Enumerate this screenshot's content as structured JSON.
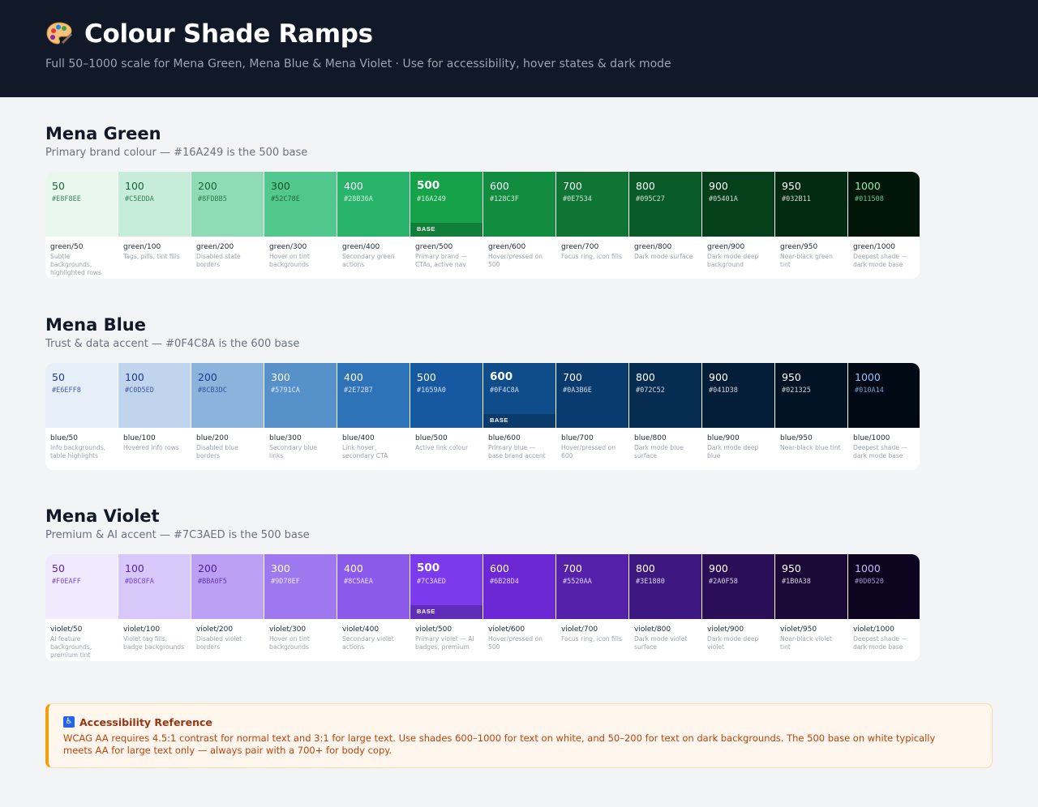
{
  "header": {
    "title": "Colour Shade Ramps",
    "subtitle": "Full 50–1000 scale for Mena Green, Mena Blue & Mena Violet  ·  Use for accessibility, hover states & dark mode",
    "icon": "palette-icon"
  },
  "ramps": [
    {
      "title": "Mena Green",
      "description": "Primary brand colour — #16A249 is the 500 base",
      "base_label": "BASE",
      "shades": [
        {
          "shade": "50",
          "hex": "#E8F8EE",
          "text": "#166534",
          "base": false,
          "token": "green/50",
          "usage": "Subtle backgrounds, highlighted rows"
        },
        {
          "shade": "100",
          "hex": "#C5EDDA",
          "text": "#166534",
          "base": false,
          "token": "green/100",
          "usage": "Tags, pills, tint fills"
        },
        {
          "shade": "200",
          "hex": "#8FDBB5",
          "text": "#166534",
          "base": false,
          "token": "green/200",
          "usage": "Disabled state borders"
        },
        {
          "shade": "300",
          "hex": "#52C78E",
          "text": "#14532D",
          "base": false,
          "token": "green/300",
          "usage": "Hover on tint backgrounds"
        },
        {
          "shade": "400",
          "hex": "#28B36A",
          "text": "#FFFFFF",
          "base": false,
          "token": "green/400",
          "usage": "Secondary green actions"
        },
        {
          "shade": "500",
          "hex": "#16A249",
          "text": "#FFFFFF",
          "base": true,
          "token": "green/500",
          "usage": "Primary brand — CTAs, active nav"
        },
        {
          "shade": "600",
          "hex": "#128C3F",
          "text": "#FFFFFF",
          "base": false,
          "token": "green/600",
          "usage": "Hover/pressed on 500"
        },
        {
          "shade": "700",
          "hex": "#0E7534",
          "text": "#FFFFFF",
          "base": false,
          "token": "green/700",
          "usage": "Focus ring, icon fills"
        },
        {
          "shade": "800",
          "hex": "#095C27",
          "text": "#FFFFFF",
          "base": false,
          "token": "green/800",
          "usage": "Dark mode surface"
        },
        {
          "shade": "900",
          "hex": "#05401A",
          "text": "#FFFFFF",
          "base": false,
          "token": "green/900",
          "usage": "Dark mode deep background"
        },
        {
          "shade": "950",
          "hex": "#032B11",
          "text": "#FFFFFF",
          "base": false,
          "token": "green/950",
          "usage": "Near-black green tint"
        },
        {
          "shade": "1000",
          "hex": "#011508",
          "text": "#86EFAC",
          "base": false,
          "token": "green/1000",
          "usage": "Deepest shade — dark mode base"
        }
      ]
    },
    {
      "title": "Mena Blue",
      "description": "Trust & data accent — #0F4C8A is the 600 base",
      "base_label": "BASE",
      "shades": [
        {
          "shade": "50",
          "hex": "#E6EFF8",
          "text": "#1E3A8A",
          "base": false,
          "token": "blue/50",
          "usage": "Info backgrounds, table highlights"
        },
        {
          "shade": "100",
          "hex": "#C0D5ED",
          "text": "#1E3A8A",
          "base": false,
          "token": "blue/100",
          "usage": "Hovered info rows"
        },
        {
          "shade": "200",
          "hex": "#8CB3DC",
          "text": "#1E3A8A",
          "base": false,
          "token": "blue/200",
          "usage": "Disabled blue borders"
        },
        {
          "shade": "300",
          "hex": "#5791CA",
          "text": "#FFFFFF",
          "base": false,
          "token": "blue/300",
          "usage": "Secondary blue links"
        },
        {
          "shade": "400",
          "hex": "#2E72B7",
          "text": "#FFFFFF",
          "base": false,
          "token": "blue/400",
          "usage": "Link hover, secondary CTA"
        },
        {
          "shade": "500",
          "hex": "#1659A0",
          "text": "#FFFFFF",
          "base": false,
          "token": "blue/500",
          "usage": "Active link colour"
        },
        {
          "shade": "600",
          "hex": "#0F4C8A",
          "text": "#FFFFFF",
          "base": true,
          "token": "blue/600",
          "usage": "Primary blue — base brand accent"
        },
        {
          "shade": "700",
          "hex": "#0A3B6E",
          "text": "#FFFFFF",
          "base": false,
          "token": "blue/700",
          "usage": "Hover/pressed on 600"
        },
        {
          "shade": "800",
          "hex": "#072C52",
          "text": "#FFFFFF",
          "base": false,
          "token": "blue/800",
          "usage": "Dark mode blue surface"
        },
        {
          "shade": "900",
          "hex": "#041D38",
          "text": "#FFFFFF",
          "base": false,
          "token": "blue/900",
          "usage": "Dark mode deep blue"
        },
        {
          "shade": "950",
          "hex": "#021325",
          "text": "#FFFFFF",
          "base": false,
          "token": "blue/950",
          "usage": "Near-black blue tint"
        },
        {
          "shade": "1000",
          "hex": "#010A14",
          "text": "#93C5FD",
          "base": false,
          "token": "blue/1000",
          "usage": "Deepest shade — dark mode base"
        }
      ]
    },
    {
      "title": "Mena Violet",
      "description": "Premium & AI accent — #7C3AED is the 500 base",
      "base_label": "BASE",
      "shades": [
        {
          "shade": "50",
          "hex": "#F0EAFF",
          "text": "#5B21B6",
          "base": false,
          "token": "violet/50",
          "usage": "AI feature backgrounds, premium tint"
        },
        {
          "shade": "100",
          "hex": "#D8C8FA",
          "text": "#5B21B6",
          "base": false,
          "token": "violet/100",
          "usage": "Violet tag fills, badge backgrounds"
        },
        {
          "shade": "200",
          "hex": "#BBA0F5",
          "text": "#4C1D95",
          "base": false,
          "token": "violet/200",
          "usage": "Disabled violet borders"
        },
        {
          "shade": "300",
          "hex": "#9D78EF",
          "text": "#FFFFFF",
          "base": false,
          "token": "violet/300",
          "usage": "Hover on tint backgrounds"
        },
        {
          "shade": "400",
          "hex": "#8C5AEA",
          "text": "#FFFFFF",
          "base": false,
          "token": "violet/400",
          "usage": "Secondary violet actions"
        },
        {
          "shade": "500",
          "hex": "#7C3AED",
          "text": "#FFFFFF",
          "base": true,
          "token": "violet/500",
          "usage": "Primary violet — AI badges, premium"
        },
        {
          "shade": "600",
          "hex": "#6B28D4",
          "text": "#FFFFFF",
          "base": false,
          "token": "violet/600",
          "usage": "Hover/pressed on 500"
        },
        {
          "shade": "700",
          "hex": "#5520AA",
          "text": "#FFFFFF",
          "base": false,
          "token": "violet/700",
          "usage": "Focus ring, icon fills"
        },
        {
          "shade": "800",
          "hex": "#3E1880",
          "text": "#FFFFFF",
          "base": false,
          "token": "violet/800",
          "usage": "Dark mode violet surface"
        },
        {
          "shade": "900",
          "hex": "#2A0F58",
          "text": "#FFFFFF",
          "base": false,
          "token": "violet/900",
          "usage": "Dark mode deep violet"
        },
        {
          "shade": "950",
          "hex": "#1B0A38",
          "text": "#FFFFFF",
          "base": false,
          "token": "violet/950",
          "usage": "Near-black violet tint"
        },
        {
          "shade": "1000",
          "hex": "#0D0520",
          "text": "#C4B5FD",
          "base": false,
          "token": "violet/1000",
          "usage": "Deepest shade — dark mode base"
        }
      ]
    }
  ],
  "accessibility": {
    "icon": "accessibility-icon",
    "title": "Accessibility Reference",
    "body": "WCAG AA requires 4.5:1 contrast for normal text and 3:1 for large text. Use shades 600–1000 for text on white, and 50–200 for text on dark backgrounds. The 500 base on white typically meets AA for large text only — always pair with a 700+ for body copy."
  }
}
